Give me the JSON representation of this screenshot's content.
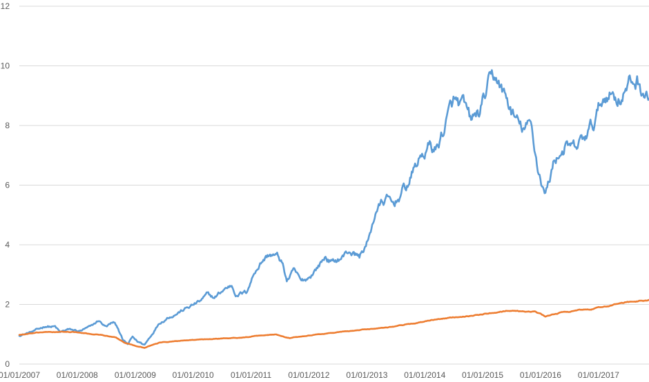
{
  "chart_data": {
    "type": "line",
    "title": "",
    "xlabel": "",
    "ylabel": "",
    "ylim": [
      0,
      12
    ],
    "y_ticks": [
      "0",
      "2",
      "4",
      "6",
      "8",
      "10",
      "12"
    ],
    "x_ticks": [
      "01/01/2007",
      "01/01/2008",
      "01/01/2009",
      "01/01/2010",
      "01/01/2011",
      "01/01/2012",
      "01/01/2013",
      "01/01/2014",
      "01/01/2015",
      "01/01/2016",
      "01/01/2017"
    ],
    "grid": "horizontal",
    "legend": "none",
    "x_start": "2007-01-01",
    "x_end": "2017-11-15",
    "series": [
      {
        "color": "#5b9bd5",
        "points": [
          [
            "2007-01-01",
            0.97
          ],
          [
            "2007-03-01",
            1.05
          ],
          [
            "2007-05-01",
            1.15
          ],
          [
            "2007-06-15",
            1.28
          ],
          [
            "2007-08-15",
            1.25
          ],
          [
            "2007-09-15",
            1.05
          ],
          [
            "2007-11-01",
            1.15
          ],
          [
            "2008-01-15",
            1.1
          ],
          [
            "2008-04-01",
            1.25
          ],
          [
            "2008-05-15",
            1.45
          ],
          [
            "2008-07-01",
            1.25
          ],
          [
            "2008-08-15",
            1.4
          ],
          [
            "2008-09-15",
            1.2
          ],
          [
            "2008-10-15",
            0.8
          ],
          [
            "2008-11-15",
            0.65
          ],
          [
            "2008-12-15",
            0.9
          ],
          [
            "2009-01-15",
            0.75
          ],
          [
            "2009-03-01",
            0.65
          ],
          [
            "2009-04-15",
            1.0
          ],
          [
            "2009-06-01",
            1.4
          ],
          [
            "2009-08-01",
            1.6
          ],
          [
            "2009-10-01",
            1.75
          ],
          [
            "2009-12-01",
            1.9
          ],
          [
            "2010-02-15",
            2.1
          ],
          [
            "2010-04-01",
            2.3
          ],
          [
            "2010-05-15",
            2.2
          ],
          [
            "2010-07-15",
            2.5
          ],
          [
            "2010-09-01",
            2.65
          ],
          [
            "2010-10-01",
            2.35
          ],
          [
            "2010-12-01",
            2.4
          ],
          [
            "2011-02-01",
            3.2
          ],
          [
            "2011-03-15",
            3.5
          ],
          [
            "2011-05-01",
            3.7
          ],
          [
            "2011-06-15",
            3.6
          ],
          [
            "2011-07-15",
            3.4
          ],
          [
            "2011-08-15",
            2.8
          ],
          [
            "2011-10-01",
            3.1
          ],
          [
            "2011-11-15",
            2.7
          ],
          [
            "2012-01-01",
            2.9
          ],
          [
            "2012-03-01",
            3.3
          ],
          [
            "2012-04-15",
            3.6
          ],
          [
            "2012-06-01",
            3.4
          ],
          [
            "2012-08-01",
            3.6
          ],
          [
            "2012-09-15",
            3.8
          ],
          [
            "2012-11-15",
            3.6
          ],
          [
            "2013-01-15",
            4.2
          ],
          [
            "2013-03-01",
            5.2
          ],
          [
            "2013-05-01",
            5.5
          ],
          [
            "2013-06-15",
            5.3
          ],
          [
            "2013-08-01",
            5.7
          ],
          [
            "2013-09-15",
            6.0
          ],
          [
            "2013-11-01",
            6.6
          ],
          [
            "2013-12-15",
            7.0
          ],
          [
            "2014-02-01",
            7.3
          ],
          [
            "2014-03-15",
            7.2
          ],
          [
            "2014-05-15",
            8.1
          ],
          [
            "2014-07-01",
            8.7
          ],
          [
            "2014-09-01",
            8.5
          ],
          [
            "2014-10-15",
            8.0
          ],
          [
            "2014-12-15",
            8.4
          ],
          [
            "2015-02-01",
            9.2
          ],
          [
            "2015-04-01",
            9.55
          ],
          [
            "2015-05-15",
            9.0
          ],
          [
            "2015-07-15",
            8.3
          ],
          [
            "2015-09-01",
            7.8
          ],
          [
            "2015-11-01",
            7.9
          ],
          [
            "2015-12-15",
            6.6
          ],
          [
            "2016-02-01",
            5.7
          ],
          [
            "2016-04-01",
            6.9
          ],
          [
            "2016-06-01",
            7.3
          ],
          [
            "2016-08-01",
            7.1
          ],
          [
            "2016-10-01",
            7.5
          ],
          [
            "2016-12-01",
            8.0
          ],
          [
            "2017-01-15",
            8.7
          ],
          [
            "2017-03-01",
            9.2
          ],
          [
            "2017-05-01",
            9.0
          ],
          [
            "2017-07-01",
            9.3
          ],
          [
            "2017-09-01",
            9.5
          ],
          [
            "2017-11-15",
            8.9
          ]
        ]
      },
      {
        "color": "#ed7d31",
        "points": [
          [
            "2007-01-01",
            0.98
          ],
          [
            "2007-06-01",
            1.07
          ],
          [
            "2007-12-01",
            1.08
          ],
          [
            "2008-03-01",
            1.02
          ],
          [
            "2008-06-01",
            0.98
          ],
          [
            "2008-09-01",
            0.88
          ],
          [
            "2008-11-01",
            0.7
          ],
          [
            "2009-03-01",
            0.55
          ],
          [
            "2009-06-01",
            0.72
          ],
          [
            "2009-12-01",
            0.8
          ],
          [
            "2010-06-01",
            0.85
          ],
          [
            "2010-12-01",
            0.9
          ],
          [
            "2011-06-01",
            1.0
          ],
          [
            "2011-09-01",
            0.88
          ],
          [
            "2011-12-01",
            0.95
          ],
          [
            "2012-06-01",
            1.05
          ],
          [
            "2012-12-01",
            1.15
          ],
          [
            "2013-06-01",
            1.25
          ],
          [
            "2013-12-01",
            1.4
          ],
          [
            "2014-06-01",
            1.55
          ],
          [
            "2014-12-01",
            1.65
          ],
          [
            "2015-06-01",
            1.8
          ],
          [
            "2015-12-01",
            1.75
          ],
          [
            "2016-02-01",
            1.6
          ],
          [
            "2016-06-01",
            1.75
          ],
          [
            "2016-12-01",
            1.85
          ],
          [
            "2017-06-01",
            2.05
          ],
          [
            "2017-11-15",
            2.15
          ]
        ]
      }
    ]
  }
}
